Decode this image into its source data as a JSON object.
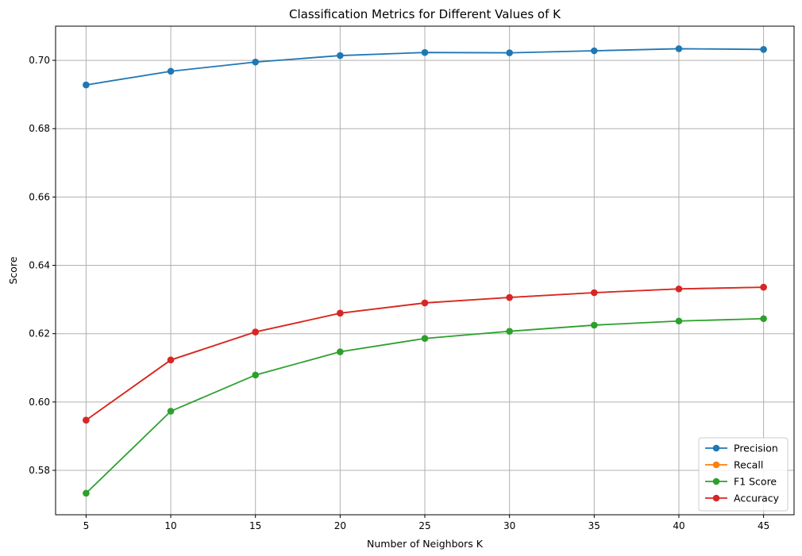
{
  "chart_data": {
    "type": "line",
    "title": "Classification Metrics for Different Values of K",
    "xlabel": "Number of Neighbors K",
    "ylabel": "Score",
    "x": [
      5,
      10,
      15,
      20,
      25,
      30,
      35,
      40,
      45
    ],
    "x_ticks": [
      "5",
      "10",
      "15",
      "20",
      "25",
      "30",
      "35",
      "40",
      "45"
    ],
    "y_ticks": [
      "0.58",
      "0.60",
      "0.62",
      "0.64",
      "0.66",
      "0.68",
      "0.70"
    ],
    "xlim": [
      3.2,
      46.8
    ],
    "ylim": [
      0.567,
      0.71
    ],
    "grid": true,
    "legend_position": "lower right",
    "series": [
      {
        "name": "Precision",
        "color": "#1f77b4",
        "values": [
          0.6928,
          0.6968,
          0.6995,
          0.7014,
          0.7023,
          0.7022,
          0.7028,
          0.7034,
          0.7032
        ]
      },
      {
        "name": "Recall",
        "color": "#ff7f0e",
        "values": [
          0.5947,
          0.6123,
          0.6205,
          0.626,
          0.629,
          0.6306,
          0.632,
          0.6331,
          0.6336
        ]
      },
      {
        "name": "F1 Score",
        "color": "#2ca02c",
        "values": [
          0.5733,
          0.5973,
          0.6079,
          0.6147,
          0.6186,
          0.6207,
          0.6225,
          0.6237,
          0.6244
        ]
      },
      {
        "name": "Accuracy",
        "color": "#d62728",
        "values": [
          0.5947,
          0.6123,
          0.6205,
          0.626,
          0.629,
          0.6306,
          0.632,
          0.6331,
          0.6336
        ]
      }
    ]
  }
}
